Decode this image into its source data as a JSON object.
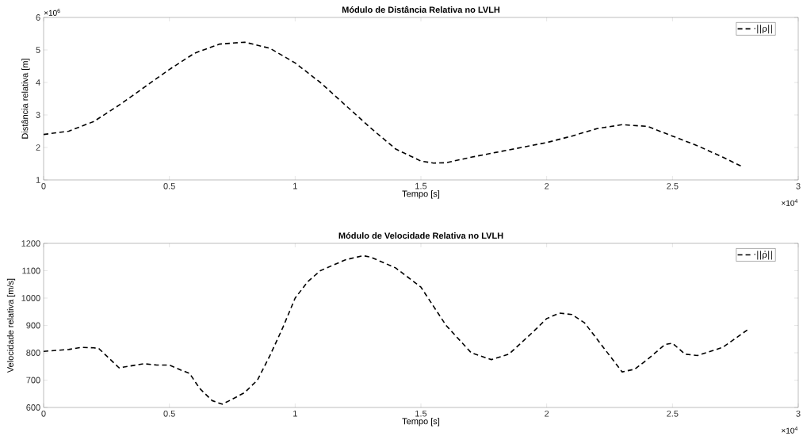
{
  "chart_data": [
    {
      "type": "line",
      "title": "Módulo de Distância Relativa no LVLH",
      "xlabel": "Tempo [s]",
      "ylabel": "Distância relativa  [m]",
      "x": [
        0,
        0.1,
        0.2,
        0.3,
        0.4,
        0.5,
        0.6,
        0.7,
        0.8,
        0.9,
        1.0,
        1.1,
        1.2,
        1.3,
        1.4,
        1.5,
        1.55,
        1.6,
        1.7,
        1.8,
        1.9,
        2.0,
        2.1,
        2.2,
        2.3,
        2.4,
        2.5,
        2.6,
        2.7,
        2.78
      ],
      "series": [
        {
          "name": "·||ρ||",
          "color": "#000000",
          "values": [
            2.4,
            2.5,
            2.8,
            3.3,
            3.85,
            4.4,
            4.9,
            5.18,
            5.24,
            5.05,
            4.6,
            4.0,
            3.3,
            2.6,
            1.95,
            1.58,
            1.52,
            1.53,
            1.7,
            1.85,
            2.0,
            2.15,
            2.35,
            2.58,
            2.7,
            2.65,
            2.35,
            2.05,
            1.7,
            1.4
          ]
        }
      ],
      "xlim": [
        0,
        3
      ],
      "xticks": [
        0,
        0.5,
        1,
        1.5,
        2,
        2.5,
        3
      ],
      "ylim": [
        1,
        6
      ],
      "yticks": [
        1,
        2,
        3,
        4,
        5,
        6
      ],
      "annotations": [
        "×10$^{6}$",
        "×10$^{4}$"
      ],
      "legend": "top right",
      "line_style": "dashed"
    },
    {
      "type": "line",
      "title": "Módulo de Velocidade Relativa no LVLH",
      "xlabel": "Tempo [s]",
      "ylabel": "Velocidade relativa  [m/s]",
      "x": [
        0,
        0.1,
        0.15,
        0.2,
        0.22,
        0.3,
        0.4,
        0.45,
        0.5,
        0.55,
        0.58,
        0.62,
        0.67,
        0.71,
        0.75,
        0.8,
        0.85,
        0.9,
        0.95,
        1.0,
        1.05,
        1.1,
        1.2,
        1.27,
        1.3,
        1.4,
        1.5,
        1.6,
        1.7,
        1.78,
        1.85,
        1.95,
        2.0,
        2.05,
        2.1,
        2.15,
        2.2,
        2.3,
        2.35,
        2.4,
        2.47,
        2.5,
        2.55,
        2.6,
        2.7,
        2.8
      ],
      "series": [
        {
          "name": "·||ρ̇||",
          "color": "#000000",
          "values": [
            805,
            812,
            820,
            818,
            815,
            745,
            760,
            755,
            755,
            735,
            725,
            670,
            625,
            612,
            630,
            655,
            700,
            790,
            890,
            1000,
            1060,
            1100,
            1140,
            1155,
            1150,
            1110,
            1040,
            900,
            800,
            775,
            795,
            880,
            925,
            945,
            940,
            910,
            850,
            730,
            740,
            775,
            830,
            835,
            795,
            790,
            820,
            885
          ]
        }
      ],
      "xlim": [
        0,
        3
      ],
      "xticks": [
        0,
        0.5,
        1,
        1.5,
        2,
        2.5,
        3
      ],
      "ylim": [
        600,
        1200
      ],
      "yticks": [
        600,
        700,
        800,
        900,
        1000,
        1100,
        1200
      ],
      "annotations": [
        "×10$^{4}$"
      ],
      "legend": "top right",
      "line_style": "dashed"
    }
  ]
}
